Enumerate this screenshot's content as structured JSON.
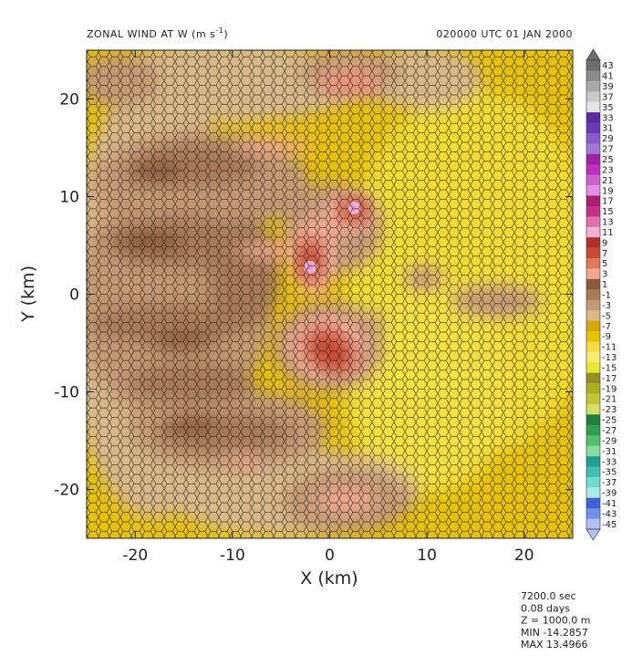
{
  "header": {
    "left": "ZONAL WIND AT W (m s",
    "left_sup": "-1",
    "left_tail": ")",
    "right": "020000 UTC    01 JAN 2000"
  },
  "info": [
    "7200.0 sec",
    "0.08 days",
    "Z = 1000.0 m",
    "MIN -14.2857",
    "MAX 13.4966"
  ],
  "chart_data": {
    "type": "heatmap",
    "xlabel": "X (km)",
    "ylabel": "Y (km)",
    "xlim": [
      -25,
      25
    ],
    "ylim": [
      -25,
      25
    ],
    "x_ticks": [
      "-20",
      "-10",
      "0",
      "10",
      "20"
    ],
    "x_tick_values": [
      -20,
      -10,
      0,
      10,
      20
    ],
    "y_ticks": [
      "20",
      "10",
      "0",
      "-10",
      "-20"
    ],
    "y_tick_values": [
      20,
      10,
      0,
      -10,
      -20
    ],
    "colorbar": {
      "labels": [
        "43",
        "41",
        "39",
        "37",
        "35",
        "33",
        "31",
        "29",
        "27",
        "25",
        "23",
        "21",
        "19",
        "17",
        "15",
        "13",
        "11",
        "9",
        "7",
        "5",
        "3",
        "1",
        "-1",
        "-3",
        "-5",
        "-7",
        "-9",
        "-11",
        "-13",
        "-15",
        "-17",
        "-19",
        "-21",
        "-23",
        "-25",
        "-27",
        "-29",
        "-31",
        "-33",
        "-35",
        "-37",
        "-39",
        "-41",
        "-43",
        "-45"
      ],
      "colors": [
        "#6e6e6e",
        "#8a8a8a",
        "#a8a8a8",
        "#c8c8c8",
        "#e4e4e4",
        "#5a2aa0",
        "#6a3ab8",
        "#8a5acc",
        "#a07ad8",
        "#a020a8",
        "#c030c0",
        "#d060d0",
        "#e090e8",
        "#a8206a",
        "#c83088",
        "#e070a8",
        "#f0b0d0",
        "#b03028",
        "#c84a30",
        "#e07858",
        "#f0a890",
        "#8a5a3a",
        "#a87a58",
        "#c49a72",
        "#d8b888",
        "#d4a800",
        "#e8c400",
        "#f4dc40",
        "#f8ec70",
        "#e8e830",
        "#909020",
        "#a8b020",
        "#c0c838",
        "#d8dc60",
        "#208040",
        "#30a050",
        "#50c070",
        "#88dca0",
        "#20a090",
        "#40c0b0",
        "#70dcd0",
        "#a8ece8",
        "#4060d8",
        "#7090e8",
        "#b0c0f4"
      ]
    },
    "field_min": -14.2857,
    "field_max": 13.4966
  }
}
